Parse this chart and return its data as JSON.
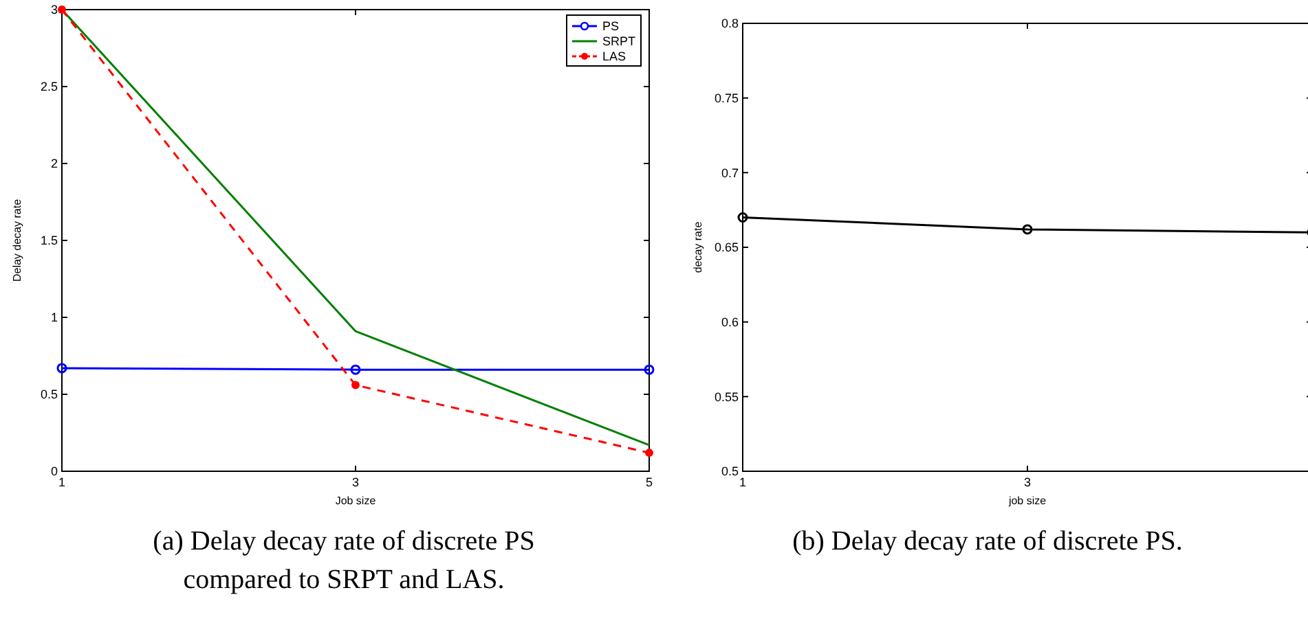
{
  "chart_data": [
    {
      "type": "line",
      "xlabel": "Job size",
      "ylabel": "Delay decay rate",
      "x": [
        1,
        3,
        5
      ],
      "xlim": [
        1,
        5
      ],
      "xticks": [
        1,
        3,
        5
      ],
      "ylim": [
        0,
        3
      ],
      "yticks": [
        0,
        0.5,
        1,
        1.5,
        2,
        2.5,
        3
      ],
      "legend": "top right",
      "grid": false,
      "annotations": [
        "(a) Delay decay rate of discrete PS compared to SRPT and LAS."
      ],
      "series": [
        {
          "name": "PS",
          "color": "#0000ff",
          "values": [
            0.67,
            0.66,
            0.66
          ],
          "marker": "circle",
          "line_style": "solid"
        },
        {
          "name": "SRPT",
          "color": "#008000",
          "values": [
            3,
            0.91,
            0.17
          ],
          "marker": "none",
          "line_style": "solid"
        },
        {
          "name": "LAS",
          "color": "#ff0000",
          "values": [
            3,
            0.56,
            0.12
          ],
          "marker": "dot",
          "line_style": "dashed"
        }
      ]
    },
    {
      "type": "line",
      "xlabel": "job size",
      "ylabel": "decay rate",
      "x": [
        1,
        3,
        5
      ],
      "xlim": [
        1,
        5
      ],
      "xticks": [
        1,
        3
      ],
      "ylim": [
        0.5,
        0.8
      ],
      "yticks": [
        0.5,
        0.55,
        0.6,
        0.65,
        0.7,
        0.75,
        0.8
      ],
      "legend": false,
      "grid": false,
      "annotations": [
        "(b) Delay decay rate of discrete PS."
      ],
      "series": [
        {
          "color": "#000000",
          "values": [
            0.67,
            0.662,
            0.66
          ],
          "marker": "circle",
          "line_style": "solid"
        }
      ]
    }
  ]
}
